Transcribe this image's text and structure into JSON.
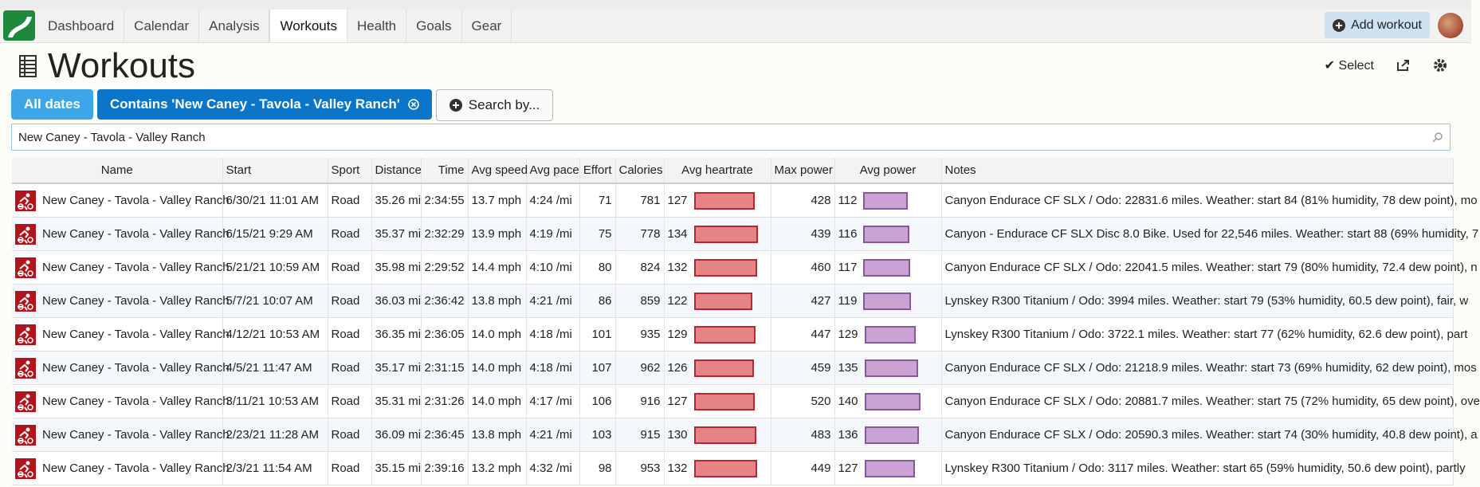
{
  "nav": {
    "tabs": [
      "Dashboard",
      "Calendar",
      "Analysis",
      "Workouts",
      "Health",
      "Goals",
      "Gear"
    ],
    "add_workout": "Add workout"
  },
  "header": {
    "title": "Workouts",
    "select": "Select"
  },
  "filters": {
    "all_dates": "All dates",
    "contains": "Contains 'New Caney - Tavola - Valley Ranch'",
    "search_by": "Search by..."
  },
  "search": {
    "value": "New Caney - Tavola - Valley Ranch"
  },
  "table": {
    "columns": [
      "Name",
      "Start",
      "Sport",
      "Distance",
      "Time",
      "Avg speed",
      "Avg pace",
      "Effort",
      "Calories",
      "Avg heartrate",
      "Max power",
      "Avg power",
      "Notes"
    ],
    "rows": [
      [
        "New Caney - Tavola - Valley Ranch",
        "6/30/21 11:01 AM",
        "Road",
        "35.26 mi",
        "2:34:55",
        "13.7 mph",
        "4:24 /mi",
        71,
        781,
        127,
        428,
        112,
        "Canyon Endurace CF SLX / Odo: 22831.6 miles. Weather: start 84 (81% humidity, 78 dew point), mo"
      ],
      [
        "New Caney - Tavola - Valley Ranch",
        "6/15/21 9:29 AM",
        "Road",
        "35.37 mi",
        "2:32:29",
        "13.9 mph",
        "4:19 /mi",
        75,
        778,
        134,
        439,
        116,
        "Canyon - Endurace CF SLX Disc 8.0 Bike. Used for 22,546 miles. Weather: start 88 (69% humidity, 7"
      ],
      [
        "New Caney - Tavola - Valley Ranch",
        "5/21/21 10:59 AM",
        "Road",
        "35.98 mi",
        "2:29:52",
        "14.4 mph",
        "4:10 /mi",
        80,
        824,
        132,
        460,
        117,
        "Canyon Endurace CF SLX / Odo: 22041.5 miles. Weather: start 79 (80% humidity, 72.4 dew point), n"
      ],
      [
        "New Caney - Tavola - Valley Ranch",
        "5/7/21 10:07 AM",
        "Road",
        "36.03 mi",
        "2:36:42",
        "13.8 mph",
        "4:21 /mi",
        86,
        859,
        122,
        427,
        119,
        "Lynskey R300 Titanium / Odo: 3994 miles. Weather: start 79 (53% humidity, 60.5 dew point), fair, w"
      ],
      [
        "New Caney - Tavola - Valley Ranch",
        "4/12/21 10:53 AM",
        "Road",
        "36.35 mi",
        "2:36:05",
        "14.0 mph",
        "4:18 /mi",
        101,
        935,
        129,
        447,
        129,
        "Lynskey R300 Titanium / Odo: 3722.1 miles. Weather: start 77 (62% humidity, 62.6 dew point), part"
      ],
      [
        "New Caney - Tavola - Valley Ranch",
        "4/5/21 11:47 AM",
        "Road",
        "35.17 mi",
        "2:31:15",
        "14.0 mph",
        "4:18 /mi",
        107,
        962,
        126,
        459,
        135,
        "Canyon Endurace CF SLX / Odo: 21218.9 miles. Weathr: start 73 (69% humidity, 62 dew point), mos"
      ],
      [
        "New Caney - Tavola - Valley Ranch",
        "3/11/21 10:53 AM",
        "Road",
        "35.31 mi",
        "2:31:26",
        "14.0 mph",
        "4:17 /mi",
        106,
        916,
        127,
        520,
        140,
        "Canyon Endurace CF SLX / Odo: 20881.7 miles. Weather: start 75 (72% humidity, 65 dew point), ove"
      ],
      [
        "New Caney - Tavola - Valley Ranch",
        "2/23/21 11:28 AM",
        "Road",
        "36.09 mi",
        "2:36:45",
        "13.8 mph",
        "4:21 /mi",
        103,
        915,
        130,
        483,
        136,
        "Canyon Endurace CF SLX / Odo: 20590.3 miles. Weather: start 74 (30% humidity, 40.8 dew point), a"
      ],
      [
        "New Caney - Tavola - Valley Ranch",
        "2/3/21 11:54 AM",
        "Road",
        "35.15 mi",
        "2:39:16",
        "13.2 mph",
        "4:32 /mi",
        98,
        953,
        132,
        449,
        127,
        "Lynskey R300 Titanium / Odo: 3117 miles. Weather: start 65 (59% humidity, 50.6 dew point), partly"
      ]
    ]
  }
}
